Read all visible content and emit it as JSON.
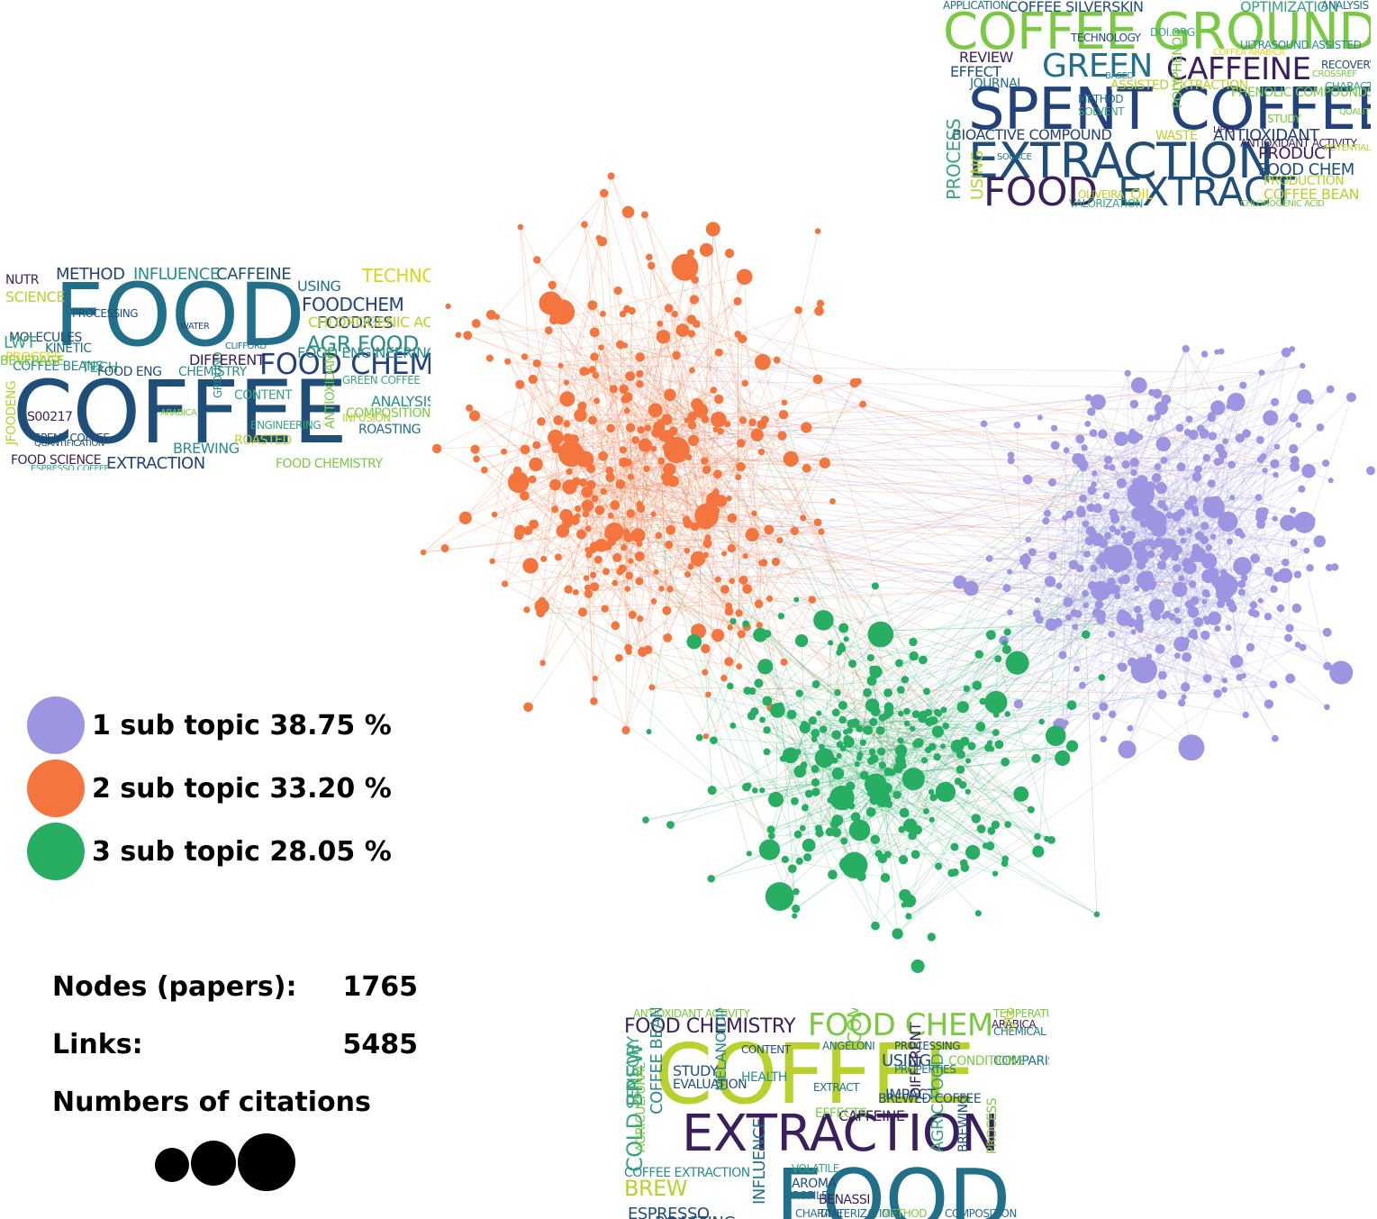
{
  "colors": {
    "topic1": "#9d94e2",
    "topic2": "#f4753e",
    "topic3": "#27ae63",
    "cloud_palette": [
      "#1f4e79",
      "#226f8a",
      "#2a8c8a",
      "#3aa57a",
      "#7ac943",
      "#b8d12d",
      "#d9d71b",
      "#3b1f5c",
      "#23417a"
    ]
  },
  "legend": [
    {
      "label": "1 sub topic 38.75 %",
      "color": "#9d94e2"
    },
    {
      "label": "2 sub topic 33.20 %",
      "color": "#f4753e"
    },
    {
      "label": "3 sub topic 28.05 %",
      "color": "#27ae63"
    }
  ],
  "stats": {
    "nodes_label": "Nodes (papers):",
    "nodes_value": "1765",
    "links_label": "Links:",
    "links_value": "5485",
    "citations_label": "Numbers of citations"
  },
  "citation_legend_icon": "three-black-circles-small-to-large",
  "wordclouds": {
    "top": [
      "COFFEE GROUND",
      "SPENT COFFEE",
      "EXTRACTION",
      "GREEN",
      "CAFFEINE",
      "FOOD",
      "EXTRACT",
      "BIOACTIVE COMPOUND",
      "ANTIOXIDANT",
      "COFFEE SILVERSKIN",
      "OPTIMIZATION",
      "PROCESS",
      "USING",
      "REVIEW",
      "EFFECT",
      "JOURNAL",
      "PRODUCT",
      "FOOD CHEM",
      "WASTE",
      "OIL",
      "COFFEE BEAN",
      "PRODUCTION",
      "TECHNOLOGY",
      "ANTIOXIDANT ACTIVITY",
      "PHENOLIC COMPOUNDS",
      "ASSISTED EXTRACTION",
      "METHOD",
      "SOLVENT",
      "DOI.ORG",
      "VALORIZATION",
      "CHLOROGENIC ACID",
      "APPLICATION",
      "ANALYSIS",
      "CHARACTERIZATION",
      "POLYPHENOL",
      "LIPID",
      "OLIVEIRA",
      "STUDY",
      "SOURCE",
      "BASED",
      "COFFEA ARABICA",
      "RECOVERY",
      "CROSSREF",
      "ULTRASOUND ASSISTED",
      "POTENTIAL",
      "QUALITY"
    ],
    "left": [
      "FOOD",
      "COFFEE",
      "FOOD CHEM",
      "AGR FOOD",
      "FOODCHEM",
      "TECHNOL",
      "CAFFEINE",
      "METHOD",
      "INFLUENCE",
      "FOODRES",
      "CHLOROGENIC ACID",
      "FOOD ENGINEERING",
      "ANALYSIS",
      "ROASTING",
      "FOOD CHEMISTRY",
      "EXTRACTION",
      "BREWING",
      "ROASTED",
      "GROUND",
      "ANTIOXIDANT",
      "CONTENT",
      "DIFFERENT",
      "TECH",
      "FOOD ENG",
      "CHEMISTRY",
      "COFFEE BEANS",
      "PROCESS",
      "KINETIC",
      "MOLECULES",
      "LWT",
      "SCIENCE",
      "NUTR",
      "BEVERAGE",
      "PROCESSING",
      "USING",
      "FOOD SCIENCE",
      "ESPRESSO COFFEE",
      "GREEN COFFEE",
      "COMPOSITION",
      "ENGINEERING",
      "INFUSION",
      "S00217",
      "JFOODENG",
      "SPENT COFFEE",
      "QUANTIFICATION",
      "CLIFFORD",
      "WATER",
      "ARABICA"
    ],
    "bottom": [
      "COFFEE",
      "FOOD",
      "EXTRACTION",
      "FOOD CHEM",
      "FOOD CHEMISTRY",
      "ANTIOXIDANT ACTIVITY",
      "TEMPERATURE",
      "ARABICA",
      "CHEMICAL",
      "COMPOUND",
      "QUALITY",
      "BREW",
      "COLD BREW",
      "COFFEE BEAN",
      "SENSORY",
      "AGRICULTURAL",
      "ROASTING",
      "ESPRESSO",
      "INFLUENCE",
      "COFFEE EXTRACTION",
      "USING",
      "IMPACT",
      "CAFFEINE",
      "DIFFERENT",
      "AGRIC FOOD",
      "BREWING",
      "PROCESS",
      "MELANOIDIN",
      "EFFECTS",
      "AROMA",
      "VOLATILE",
      "PROFILE",
      "STUDY",
      "EVALUATION",
      "CONTENT",
      "HEALTH",
      "COMPARISON",
      "CONDITIONS",
      "PROPERTIES",
      "ANGELONI",
      "PROCESSING",
      "EXTRACT",
      "BREWED COFFEE",
      "BENASSI",
      "TIME",
      "METHOD",
      "CHARACTERIZATION",
      "COMPOSITION"
    ]
  }
}
